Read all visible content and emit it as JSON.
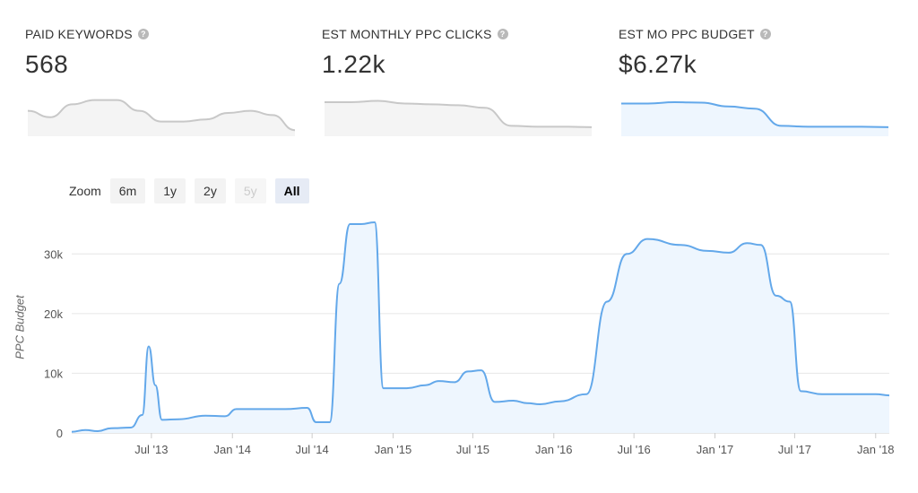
{
  "stats": [
    {
      "title": "PAID KEYWORDS",
      "value": "568",
      "help": "?"
    },
    {
      "title": "EST MONTHLY PPC CLICKS",
      "value": "1.22k",
      "help": "?"
    },
    {
      "title": "EST MO PPC BUDGET",
      "value": "$6.27k",
      "help": "?"
    }
  ],
  "zoom": {
    "label": "Zoom",
    "buttons": [
      "6m",
      "1y",
      "2y",
      "5y",
      "All"
    ],
    "disabled": "5y",
    "active": "All"
  },
  "colors": {
    "line": "#63a8ea",
    "fill": "#eef6fe",
    "spark_gray": "#c8c8c8",
    "spark_fill": "#f4f4f4",
    "grid": "#e6e6e6"
  },
  "sparklines": [
    {
      "name": "paid-keywords-sparkline",
      "style": "gray",
      "values": [
        0.55,
        0.4,
        0.7,
        0.8,
        0.8,
        0.55,
        0.3,
        0.3,
        0.35,
        0.5,
        0.55,
        0.45,
        0.1
      ]
    },
    {
      "name": "ppc-clicks-sparkline",
      "style": "gray",
      "values": [
        0.75,
        0.75,
        0.78,
        0.72,
        0.7,
        0.68,
        0.62,
        0.2,
        0.18,
        0.18,
        0.17
      ]
    },
    {
      "name": "ppc-budget-sparkline",
      "style": "blue",
      "values": [
        0.72,
        0.72,
        0.75,
        0.74,
        0.65,
        0.6,
        0.2,
        0.18,
        0.18,
        0.18,
        0.17
      ]
    }
  ],
  "chart_data": {
    "type": "area",
    "ylabel": "PPC Budget",
    "ylim": [
      0,
      38000
    ],
    "yticks": [
      0,
      10000,
      20000,
      30000
    ],
    "ytick_labels": [
      "0",
      "10k",
      "20k",
      "30k"
    ],
    "xlim": [
      "2013-01-01",
      "2018-02-01"
    ],
    "xticks": [
      {
        "date": "2013-07-01",
        "label": "Jul '13"
      },
      {
        "date": "2014-01-01",
        "label": "Jan '14"
      },
      {
        "date": "2014-07-01",
        "label": "Jul '14"
      },
      {
        "date": "2015-01-01",
        "label": "Jan '15"
      },
      {
        "date": "2015-07-01",
        "label": "Jul '15"
      },
      {
        "date": "2016-01-01",
        "label": "Jan '16"
      },
      {
        "date": "2016-07-01",
        "label": "Jul '16"
      },
      {
        "date": "2017-01-01",
        "label": "Jan '17"
      },
      {
        "date": "2017-07-01",
        "label": "Jul '17"
      },
      {
        "date": "2018-01-01",
        "label": "Jan '18"
      }
    ],
    "grid": true,
    "series": [
      {
        "points": [
          [
            "2013-01-01",
            200
          ],
          [
            "2013-02-01",
            500
          ],
          [
            "2013-03-01",
            300
          ],
          [
            "2013-04-01",
            800
          ],
          [
            "2013-05-15",
            900
          ],
          [
            "2013-06-10",
            3000
          ],
          [
            "2013-06-25",
            14500
          ],
          [
            "2013-07-10",
            8000
          ],
          [
            "2013-07-25",
            2200
          ],
          [
            "2013-09-01",
            2300
          ],
          [
            "2013-11-01",
            2900
          ],
          [
            "2013-12-15",
            2800
          ],
          [
            "2014-01-10",
            4000
          ],
          [
            "2014-03-01",
            4000
          ],
          [
            "2014-05-01",
            4000
          ],
          [
            "2014-06-20",
            4200
          ],
          [
            "2014-07-10",
            1800
          ],
          [
            "2014-08-10",
            1800
          ],
          [
            "2014-09-01",
            25000
          ],
          [
            "2014-09-25",
            35000
          ],
          [
            "2014-10-20",
            35000
          ],
          [
            "2014-11-20",
            35300
          ],
          [
            "2014-12-10",
            7500
          ],
          [
            "2015-02-01",
            7500
          ],
          [
            "2015-03-15",
            8000
          ],
          [
            "2015-04-15",
            8700
          ],
          [
            "2015-05-20",
            8500
          ],
          [
            "2015-06-20",
            10300
          ],
          [
            "2015-07-20",
            10500
          ],
          [
            "2015-08-20",
            5200
          ],
          [
            "2015-10-01",
            5400
          ],
          [
            "2015-11-01",
            5000
          ],
          [
            "2015-12-01",
            4800
          ],
          [
            "2016-01-15",
            5300
          ],
          [
            "2016-03-15",
            6500
          ],
          [
            "2016-05-01",
            22000
          ],
          [
            "2016-06-15",
            30000
          ],
          [
            "2016-08-01",
            32500
          ],
          [
            "2016-10-15",
            31500
          ],
          [
            "2016-12-15",
            30500
          ],
          [
            "2017-02-01",
            30200
          ],
          [
            "2017-03-15",
            31800
          ],
          [
            "2017-04-15",
            31500
          ],
          [
            "2017-05-20",
            23000
          ],
          [
            "2017-06-20",
            22000
          ],
          [
            "2017-07-15",
            7000
          ],
          [
            "2017-09-01",
            6500
          ],
          [
            "2017-11-01",
            6500
          ],
          [
            "2018-01-01",
            6500
          ],
          [
            "2018-02-01",
            6300
          ]
        ]
      }
    ]
  }
}
